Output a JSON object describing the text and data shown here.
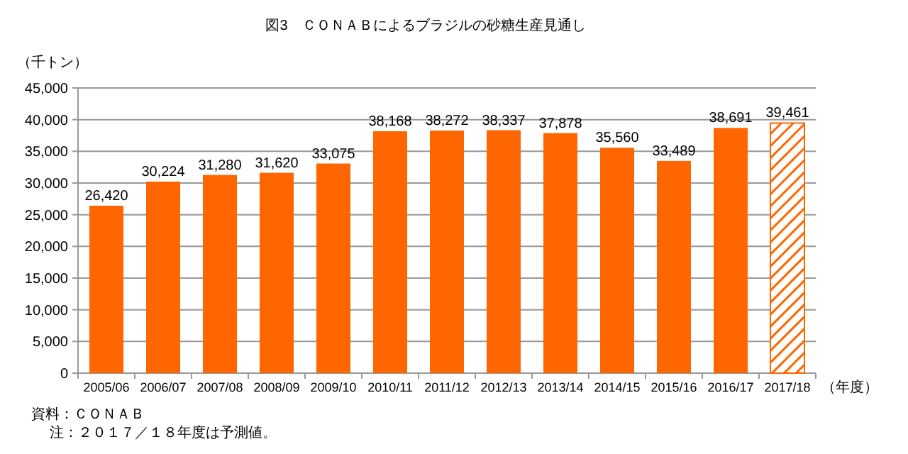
{
  "chart_data": {
    "type": "bar",
    "title": "図3　ＣＯＮＡＢによるブラジルの砂糖生産見通し",
    "ylabel": "（千トン）",
    "xlabel": "（年度）",
    "categories": [
      "2005/06",
      "2006/07",
      "2007/08",
      "2008/09",
      "2009/10",
      "2010/11",
      "2011/12",
      "2012/13",
      "2013/14",
      "2014/15",
      "2015/16",
      "2016/17",
      "2017/18"
    ],
    "series": [
      {
        "color": "#ff6600",
        "values": [
          26420,
          30224,
          31280,
          31620,
          33075,
          38168,
          38272,
          38337,
          37878,
          35560,
          33489,
          38691,
          null
        ],
        "value_labels": [
          "26,420",
          "30,224",
          "31,280",
          "31,620",
          "33,075",
          "38,168",
          "38,272",
          "38,337",
          "37,878",
          "35,560",
          "33,489",
          "38,691",
          null
        ]
      },
      {
        "color": "#ff6600",
        "values": [
          null,
          null,
          null,
          null,
          null,
          null,
          null,
          null,
          null,
          null,
          null,
          null,
          39461
        ],
        "value_labels": [
          null,
          null,
          null,
          null,
          null,
          null,
          null,
          null,
          null,
          null,
          null,
          null,
          "39,461"
        ]
      }
    ],
    "ylim": [
      0,
      45000
    ],
    "yticks": [
      0,
      {
        "value": 5000,
        "label": "5,000"
      },
      {
        "value": 10000,
        "label": "10,000"
      },
      {
        "value": 15000,
        "label": "15,000"
      },
      {
        "value": 20000,
        "label": "20,000"
      },
      {
        "value": 25000,
        "label": "25,000"
      },
      {
        "value": 30000,
        "label": "30,000"
      },
      {
        "value": 35000,
        "label": "35,000"
      },
      {
        "value": 40000,
        "label": "40,000"
      },
      {
        "value": 45000,
        "label": "45,000"
      }
    ],
    "grid": "y",
    "annotations": [
      "資料：ＣＯＮＡＢ",
      "注：２０１７／１８年度は予測値。"
    ]
  }
}
